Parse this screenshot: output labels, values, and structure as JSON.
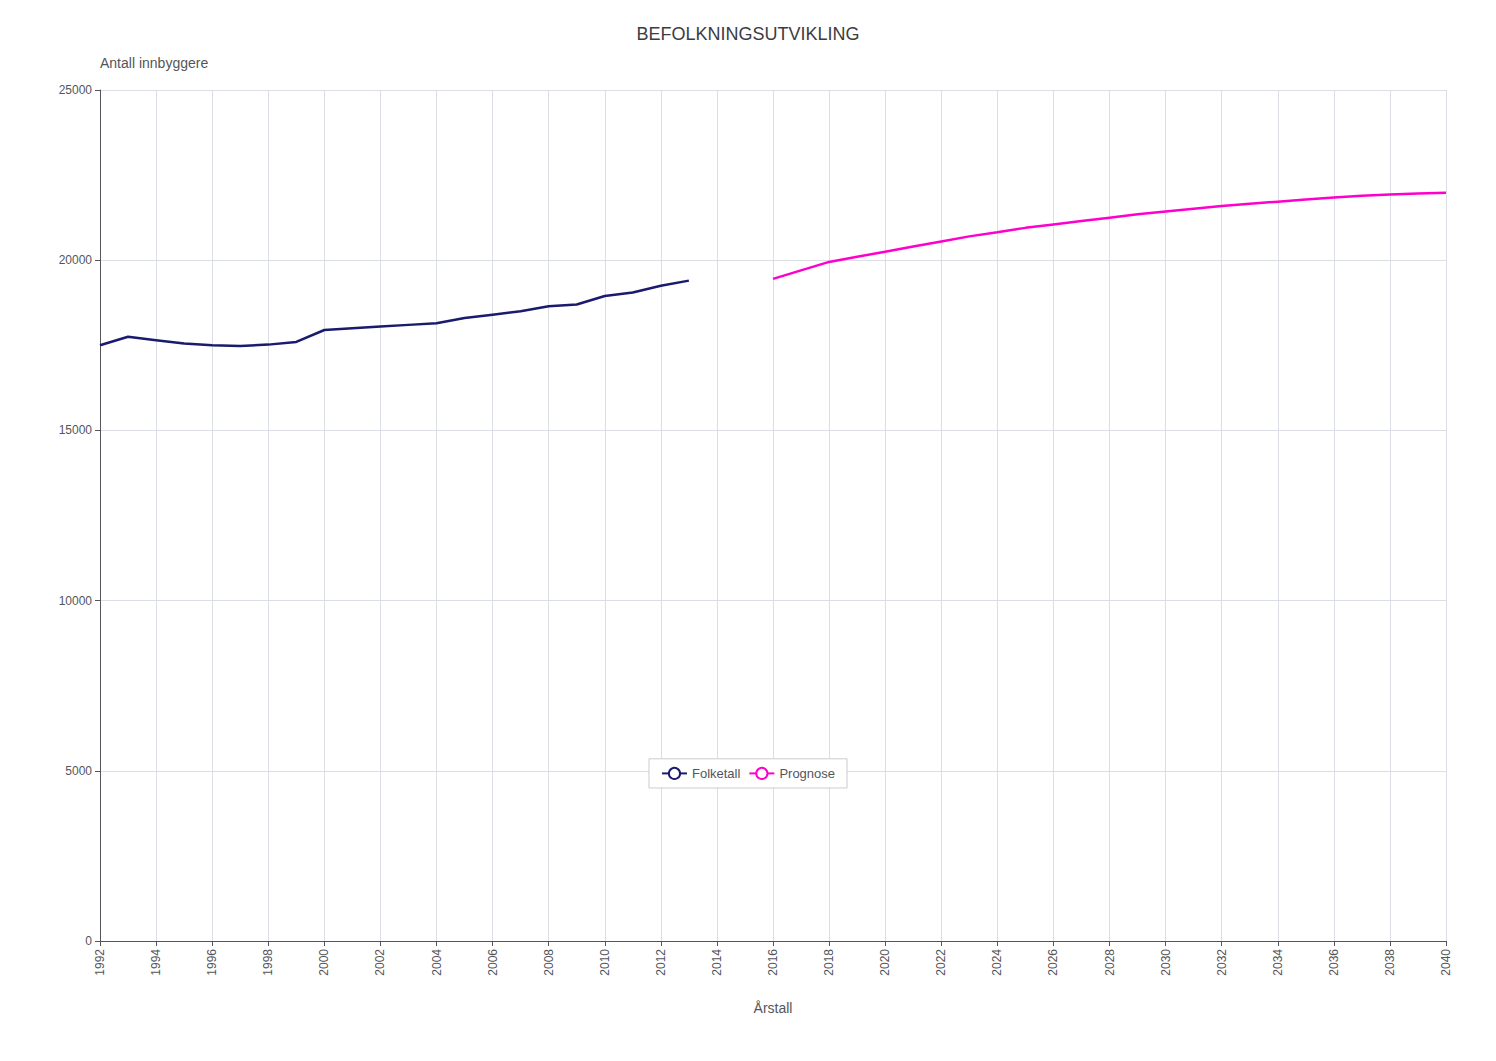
{
  "chart_data": {
    "type": "line",
    "title": "BEFOLKNINGSUTVIKLING",
    "xlabel": "Årstall",
    "ylabel": "Antall innbyggere",
    "series": [
      {
        "name": "Folketall",
        "color": "#1a1a6e",
        "x": [
          1992,
          1993,
          1994,
          1995,
          1996,
          1997,
          1998,
          1999,
          2000,
          2001,
          2002,
          2003,
          2004,
          2005,
          2006,
          2007,
          2008,
          2009,
          2010,
          2011,
          2012,
          2013
        ],
        "values": [
          17500,
          17750,
          17650,
          17550,
          17500,
          17480,
          17520,
          17600,
          17950,
          18000,
          18050,
          18100,
          18150,
          18300,
          18400,
          18500,
          18650,
          18700,
          18950,
          19050,
          19250,
          19400
        ]
      },
      {
        "name": "Prognose",
        "color": "#ff00cc",
        "x": [
          2016,
          2017,
          2018,
          2019,
          2020,
          2021,
          2022,
          2023,
          2024,
          2025,
          2026,
          2027,
          2028,
          2029,
          2030,
          2031,
          2032,
          2033,
          2034,
          2035,
          2036,
          2037,
          2038,
          2039,
          2040
        ],
        "values": [
          19450,
          19700,
          19950,
          20100,
          20250,
          20400,
          20550,
          20700,
          20820,
          20950,
          21050,
          21150,
          21250,
          21350,
          21430,
          21510,
          21590,
          21660,
          21720,
          21780,
          21840,
          21890,
          21930,
          21960,
          21980
        ]
      }
    ],
    "xlim": [
      1992,
      2040
    ],
    "xticks": [
      1992,
      1994,
      1996,
      1998,
      2000,
      2002,
      2004,
      2006,
      2008,
      2010,
      2012,
      2014,
      2016,
      2018,
      2020,
      2022,
      2024,
      2026,
      2028,
      2030,
      2032,
      2034,
      2036,
      2038,
      2040
    ],
    "ylim": [
      0,
      25000
    ],
    "yticks": [
      0,
      5000,
      10000,
      15000,
      20000,
      25000
    ],
    "grid": true,
    "legend": "lower center"
  }
}
